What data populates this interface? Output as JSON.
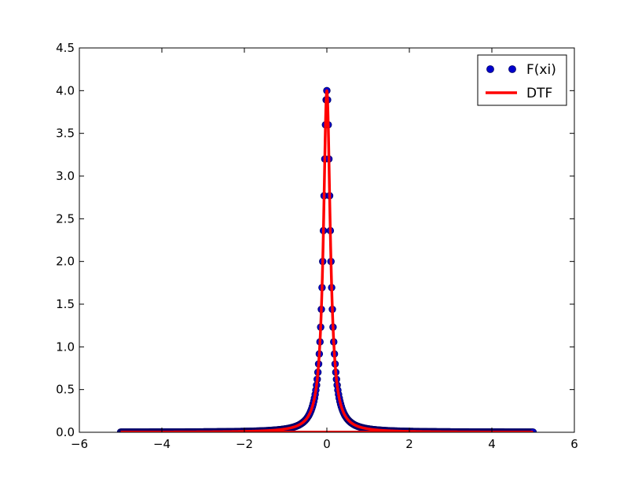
{
  "chart_data": {
    "type": "scatter",
    "title": "",
    "xlabel": "",
    "ylabel": "",
    "xlim": [
      -6,
      6
    ],
    "ylim": [
      0,
      4.5
    ],
    "x_ticks": [
      -6,
      -4,
      -2,
      0,
      2,
      4,
      6
    ],
    "y_ticks": [
      0.0,
      0.5,
      1.0,
      1.5,
      2.0,
      2.5,
      3.0,
      3.5,
      4.0,
      4.5
    ],
    "x_tick_labels": [
      "−6",
      "−4",
      "−2",
      "0",
      "2",
      "4",
      "6"
    ],
    "y_tick_labels": [
      "0.0",
      "0.5",
      "1.0",
      "1.5",
      "2.0",
      "2.5",
      "3.0",
      "3.5",
      "4.0",
      "4.5"
    ],
    "grid": false,
    "legend_position": "top-right",
    "series": [
      {
        "name": "F(xi)",
        "kind": "scatter",
        "color": "#0000cc",
        "edge_color": "#000066",
        "x_range": [
          -5,
          5
        ],
        "num_points": 601,
        "peak_x": 0,
        "peak_y": 4.0,
        "half_width_at_half_max": 0.1
      },
      {
        "name": "DTF",
        "kind": "line",
        "color": "#ff0000",
        "x_range": [
          -5,
          5
        ],
        "peak_x": 0,
        "peak_y": 4.0,
        "half_width_at_half_max": 0.1
      }
    ]
  }
}
